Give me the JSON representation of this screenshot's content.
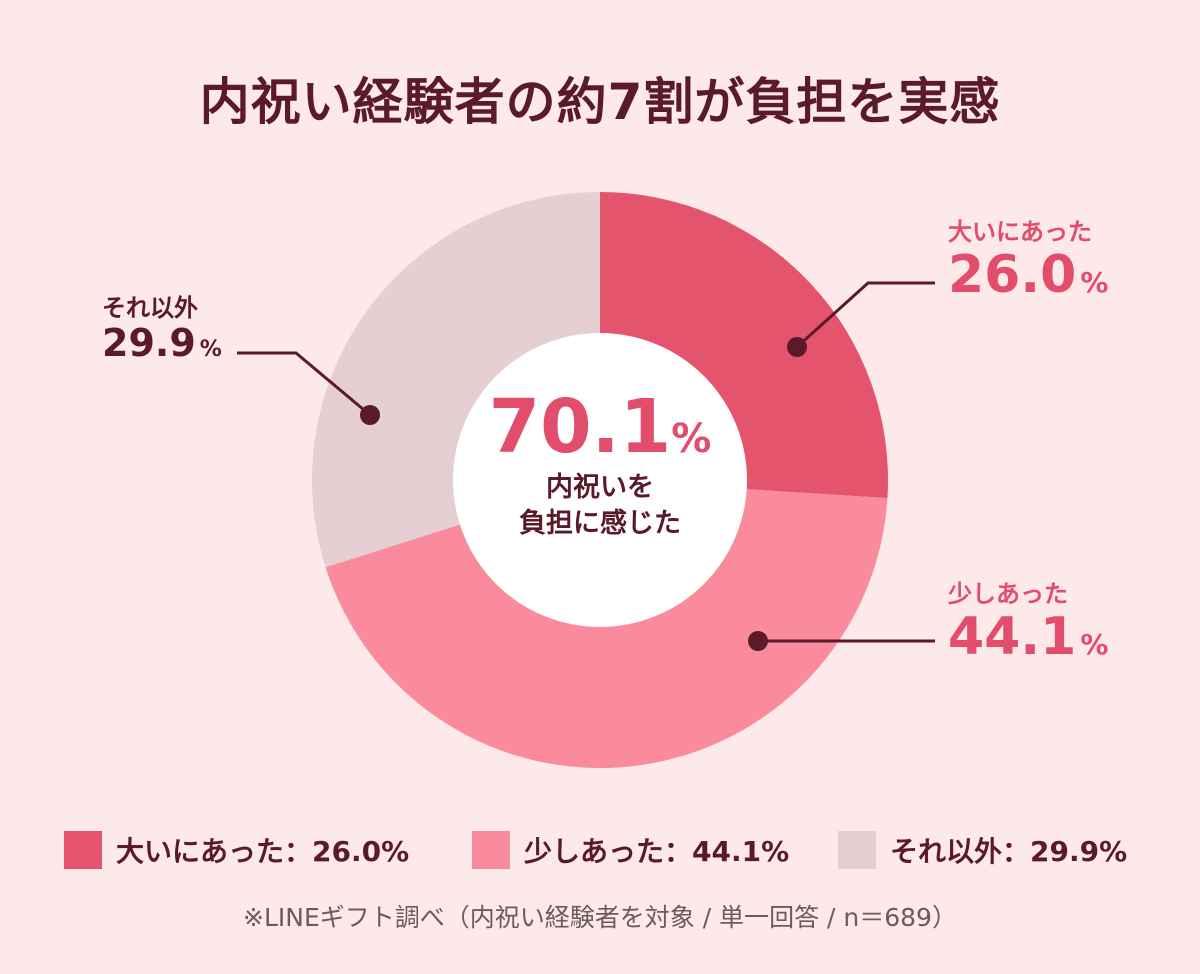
{
  "title": "内祝い経験者の約7割が負担を実感",
  "chart_data": {
    "type": "pie",
    "categories": [
      "大いにあった",
      "少しあった",
      "それ以外"
    ],
    "values": [
      26.0,
      44.1,
      29.9
    ],
    "unit": "%",
    "colors": [
      "#e5546d",
      "#f98b9c",
      "#e5cfd3"
    ],
    "center": {
      "value": "70.1",
      "unit": "%",
      "caption_line1": "内祝いを",
      "caption_line2": "負担に感じた"
    },
    "callouts": [
      {
        "label": "大いにあった",
        "value": "26.0",
        "unit": "%"
      },
      {
        "label": "少しあった",
        "value": "44.1",
        "unit": "%"
      },
      {
        "label": "それ以外",
        "value": "29.9",
        "unit": "%"
      }
    ],
    "legend": [
      {
        "text": "大いにあった：26.0%",
        "color": "#e5546d"
      },
      {
        "text": "少しあった：44.1%",
        "color": "#f98b9c"
      },
      {
        "text": "それ以外：29.9%",
        "color": "#e5cfd3"
      }
    ]
  },
  "footnote": "※LINEギフト調べ（内祝い経験者を対象 / 単一回答 / n＝689）"
}
